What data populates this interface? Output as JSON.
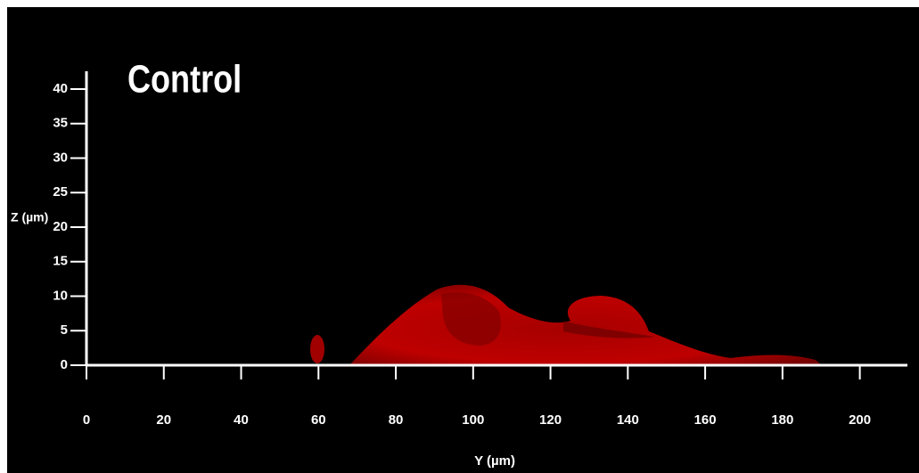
{
  "chart_data": {
    "type": "microscopy",
    "title": "Control",
    "xlabel": "Y (µm)",
    "ylabel": "Z (µm)",
    "xlim": [
      0,
      210
    ],
    "ylim": [
      0,
      40
    ],
    "xticks": [
      0,
      20,
      40,
      60,
      80,
      100,
      120,
      140,
      160,
      180,
      200
    ],
    "yticks": [
      0,
      5,
      10,
      15,
      20,
      25,
      30,
      35,
      40
    ]
  }
}
